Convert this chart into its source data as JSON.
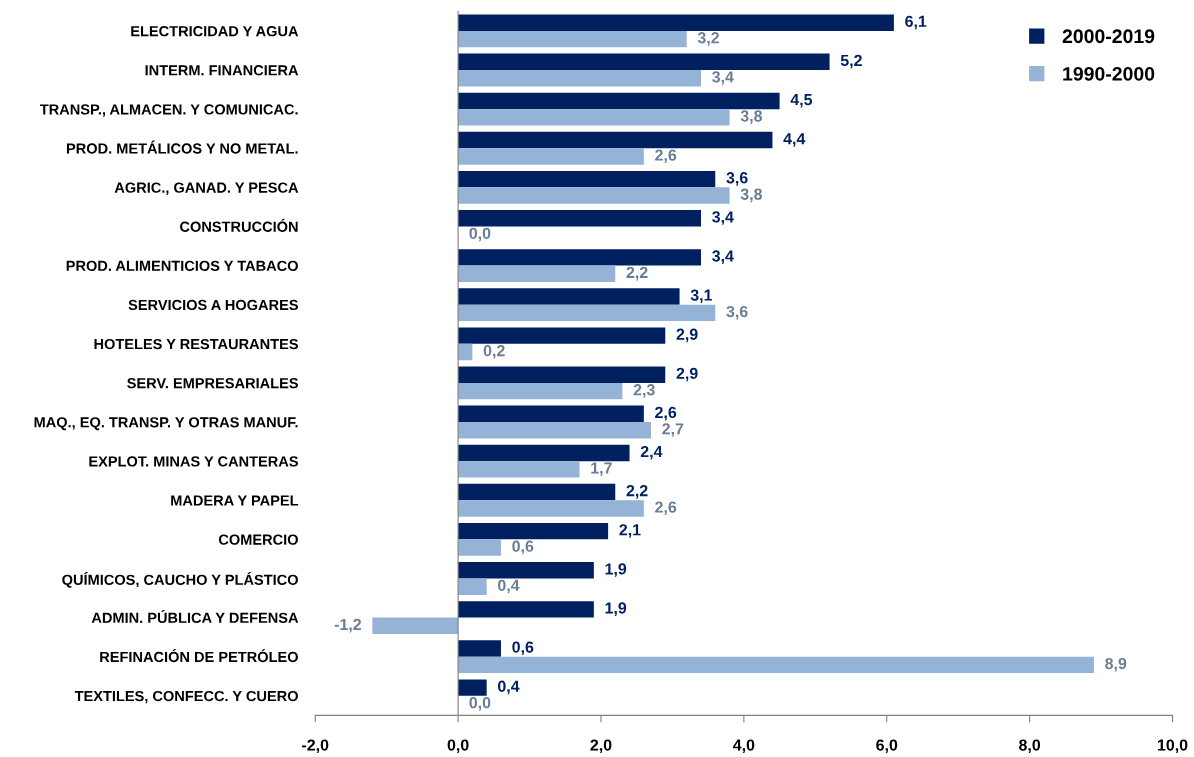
{
  "chart_data": {
    "type": "bar",
    "orientation": "horizontal",
    "categories": [
      "ELECTRICIDAD Y AGUA",
      "INTERM. FINANCIERA",
      "TRANSP., ALMACEN. Y COMUNICAC.",
      "PROD. METÁLICOS Y NO METAL.",
      "AGRIC., GANAD. Y PESCA",
      "CONSTRUCCIÓN",
      "PROD. ALIMENTICIOS Y TABACO",
      "SERVICIOS A HOGARES",
      "HOTELES Y RESTAURANTES",
      "SERV. EMPRESARIALES",
      "MAQ., EQ. TRANSP. Y OTRAS MANUF.",
      "EXPLOT. MINAS Y CANTERAS",
      "MADERA Y PAPEL",
      "COMERCIO",
      "QUÍMICOS, CAUCHO Y PLÁSTICO",
      "ADMIN. PÚBLICA Y DEFENSA",
      "REFINACIÓN DE PETRÓLEO",
      "TEXTILES, CONFECC. Y CUERO"
    ],
    "series": [
      {
        "name": "2000-2019",
        "color": "#002060",
        "values": [
          6.1,
          5.2,
          4.5,
          4.4,
          3.6,
          3.4,
          3.4,
          3.1,
          2.9,
          2.9,
          2.6,
          2.4,
          2.2,
          2.1,
          1.9,
          1.9,
          0.6,
          0.4
        ],
        "value_labels": [
          "6,1",
          "5,2",
          "4,5",
          "4,4",
          "3,6",
          "3,4",
          "3,4",
          "3,1",
          "2,9",
          "2,9",
          "2,6",
          "2,4",
          "2,2",
          "2,1",
          "1,9",
          "1,9",
          "0,6",
          "0,4"
        ]
      },
      {
        "name": "1990-2000",
        "color": "#95b3d7",
        "values": [
          3.2,
          3.4,
          3.8,
          2.6,
          3.8,
          0.0,
          2.2,
          3.6,
          0.2,
          2.3,
          2.7,
          1.7,
          2.6,
          0.6,
          0.4,
          -1.2,
          8.9,
          0.0
        ],
        "value_labels": [
          "3,2",
          "3,4",
          "3,8",
          "2,6",
          "3,8",
          "0,0",
          "2,2",
          "3,6",
          "0,2",
          "2,3",
          "2,7",
          "1,7",
          "2,6",
          "0,6",
          "0,4",
          "-1,2",
          "8,9",
          "0,0"
        ]
      }
    ],
    "xlim": [
      -2,
      10
    ],
    "xticks": [
      {
        "value": -2,
        "label": "-2,0"
      },
      {
        "value": 0,
        "label": "0,0"
      },
      {
        "value": 2,
        "label": "2,0"
      },
      {
        "value": 4,
        "label": "4,0"
      },
      {
        "value": 6,
        "label": "6,0"
      },
      {
        "value": 8,
        "label": "8,0"
      },
      {
        "value": 10,
        "label": "10,0"
      }
    ],
    "legend": "top right"
  }
}
